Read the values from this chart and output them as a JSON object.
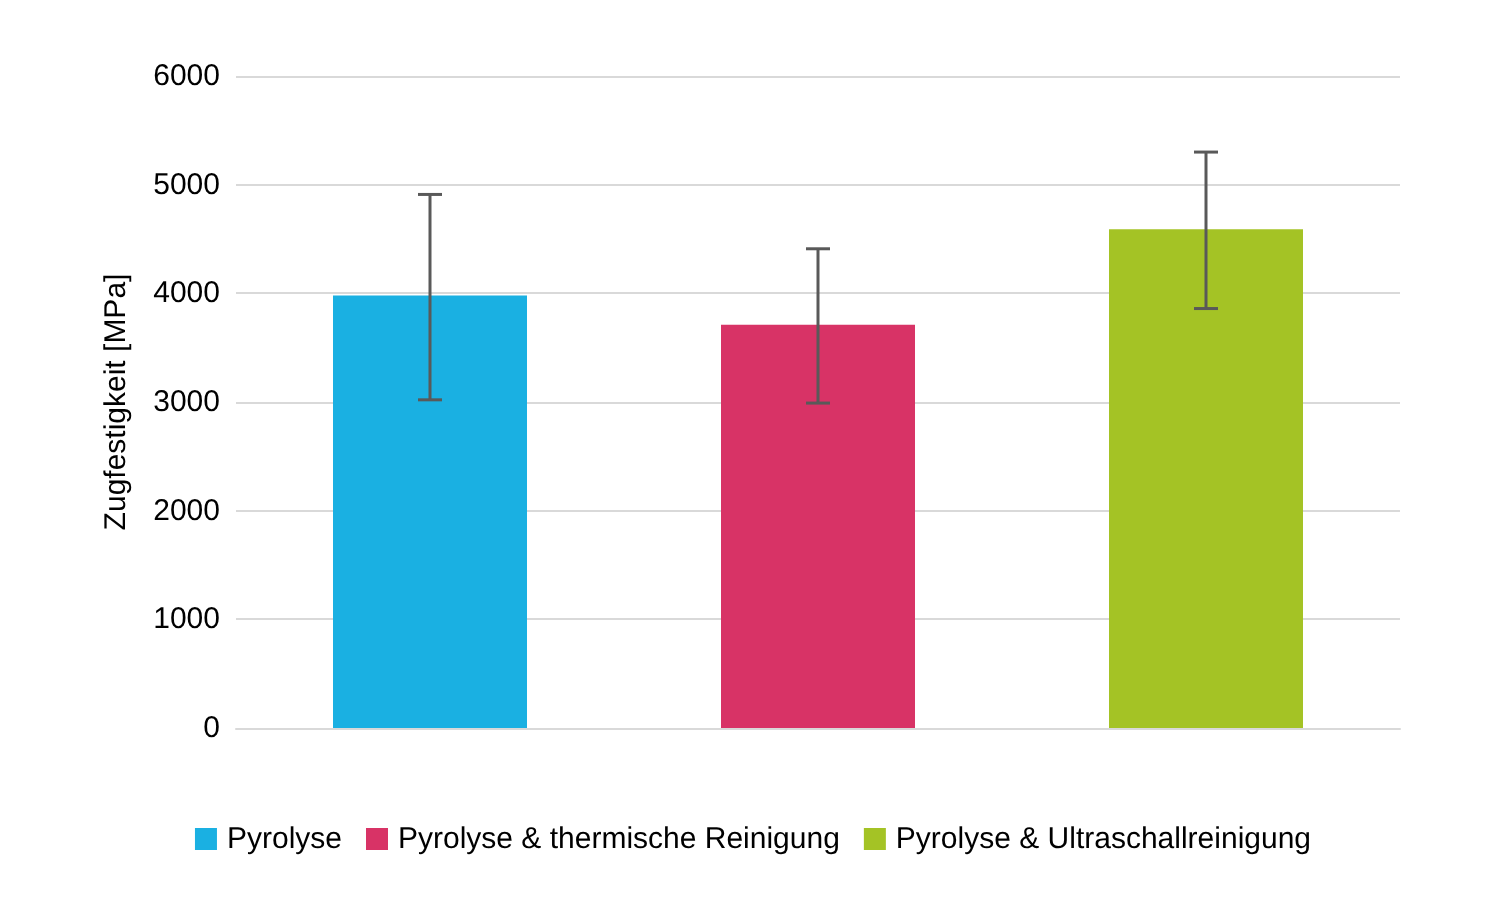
{
  "chart_data": {
    "type": "bar",
    "ylabel": "Zugfestigkeit [MPa]",
    "categories": [
      null,
      null,
      null
    ],
    "stacked": true,
    "series": [
      {
        "name": "Pyrolyse",
        "color": "#1ab0e2",
        "values": [
          3980,
          null,
          null
        ],
        "errors": [
          [
            3020,
            4910
          ],
          null,
          null
        ]
      },
      {
        "name": "Pyrolyse & thermische Reinigung",
        "color": "#d83366",
        "values": [
          null,
          3710,
          null
        ],
        "errors": [
          null,
          [
            2990,
            4410
          ],
          null
        ]
      },
      {
        "name": "Pyrolyse & Ultraschallreinigung",
        "color": "#a4c325",
        "values": [
          null,
          null,
          4590
        ],
        "errors": [
          null,
          null,
          [
            3860,
            5300
          ]
        ]
      }
    ],
    "ylim": [
      0,
      6000
    ],
    "yticks": [
      0,
      1000,
      2000,
      3000,
      4000,
      5000,
      6000
    ],
    "grid": "y",
    "legend": "bottom"
  }
}
